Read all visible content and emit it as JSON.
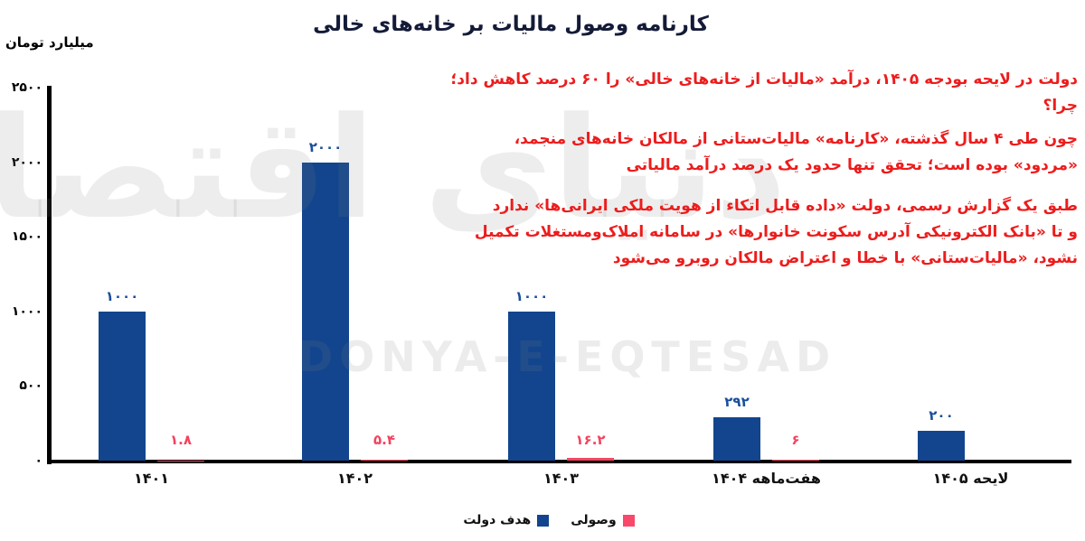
{
  "title": "کارنامه وصول مالیات بر خانه‌های خالی",
  "watermark": {
    "persian": "دنیای اقتصاد",
    "latin": "DONYA-E-EQTESAD"
  },
  "commentary": {
    "color": "#ed1c1c",
    "paragraphs": [
      [
        "دولت در لایحه بودجه ۱۴۰۵، درآمد «مالیات از خانه‌های خالی» را ۶۰ درصد کاهش داد؛",
        "چرا؟"
      ],
      [
        "چون طی ۴ سال گذشته، «کارنامه» مالیات‌ستانی از مالکان خانه‌های منجمد،",
        "«مردود» بوده است؛ تحقق تنها حدود یک درصد درآمد مالیاتی"
      ],
      [
        "طبق یک گزارش رسمی، دولت «داده قابل اتکاء از هویت ملکی ایرانی‌ها» ندارد",
        "و تا «بانک الکترونیکی آدرس سکونت خانوارها» در سامانه املاک‌ومستغلات تکمیل",
        "نشود، «مالیات‌ستانی» با خطا و اعتراض مالکان روبرو می‌شود"
      ]
    ]
  },
  "legend": [
    {
      "label": "هدف دولت",
      "color": "#12458d"
    },
    {
      "label": "وصولی",
      "color": "#f8486c"
    }
  ],
  "chart_data": {
    "type": "bar",
    "title": "کارنامه وصول مالیات بر خانه‌های خالی",
    "ylabel": "میلیارد تومان",
    "ylim": [
      0,
      2500
    ],
    "grid": false,
    "legend_position": "bottom",
    "yticks": [
      0,
      500,
      1000,
      1500,
      2000,
      2500
    ],
    "ytick_labels": [
      "۰",
      "۵۰۰",
      "۱۰۰۰",
      "۱۵۰۰",
      "۲۰۰۰",
      "۲۵۰۰"
    ],
    "categories": [
      "۱۴۰۱",
      "۱۴۰۲",
      "۱۴۰۳",
      "هفت‌ماهه ۱۴۰۴",
      "لایحه ۱۴۰۵"
    ],
    "series": [
      {
        "name": "هدف دولت",
        "color": "#12458d",
        "label_color": "#1a4f9d",
        "values": [
          1000,
          2000,
          1000,
          292,
          200
        ],
        "value_labels": [
          "۱۰۰۰",
          "۲۰۰۰",
          "۱۰۰۰",
          "۲۹۲",
          "۲۰۰"
        ]
      },
      {
        "name": "وصولی",
        "color": "#f4455f",
        "label_color": "#f5425f",
        "values": [
          1.8,
          5.4,
          16.2,
          6,
          null
        ],
        "value_labels": [
          "۱.۸",
          "۵.۴",
          "۱۶.۲",
          "۶",
          ""
        ]
      }
    ]
  }
}
